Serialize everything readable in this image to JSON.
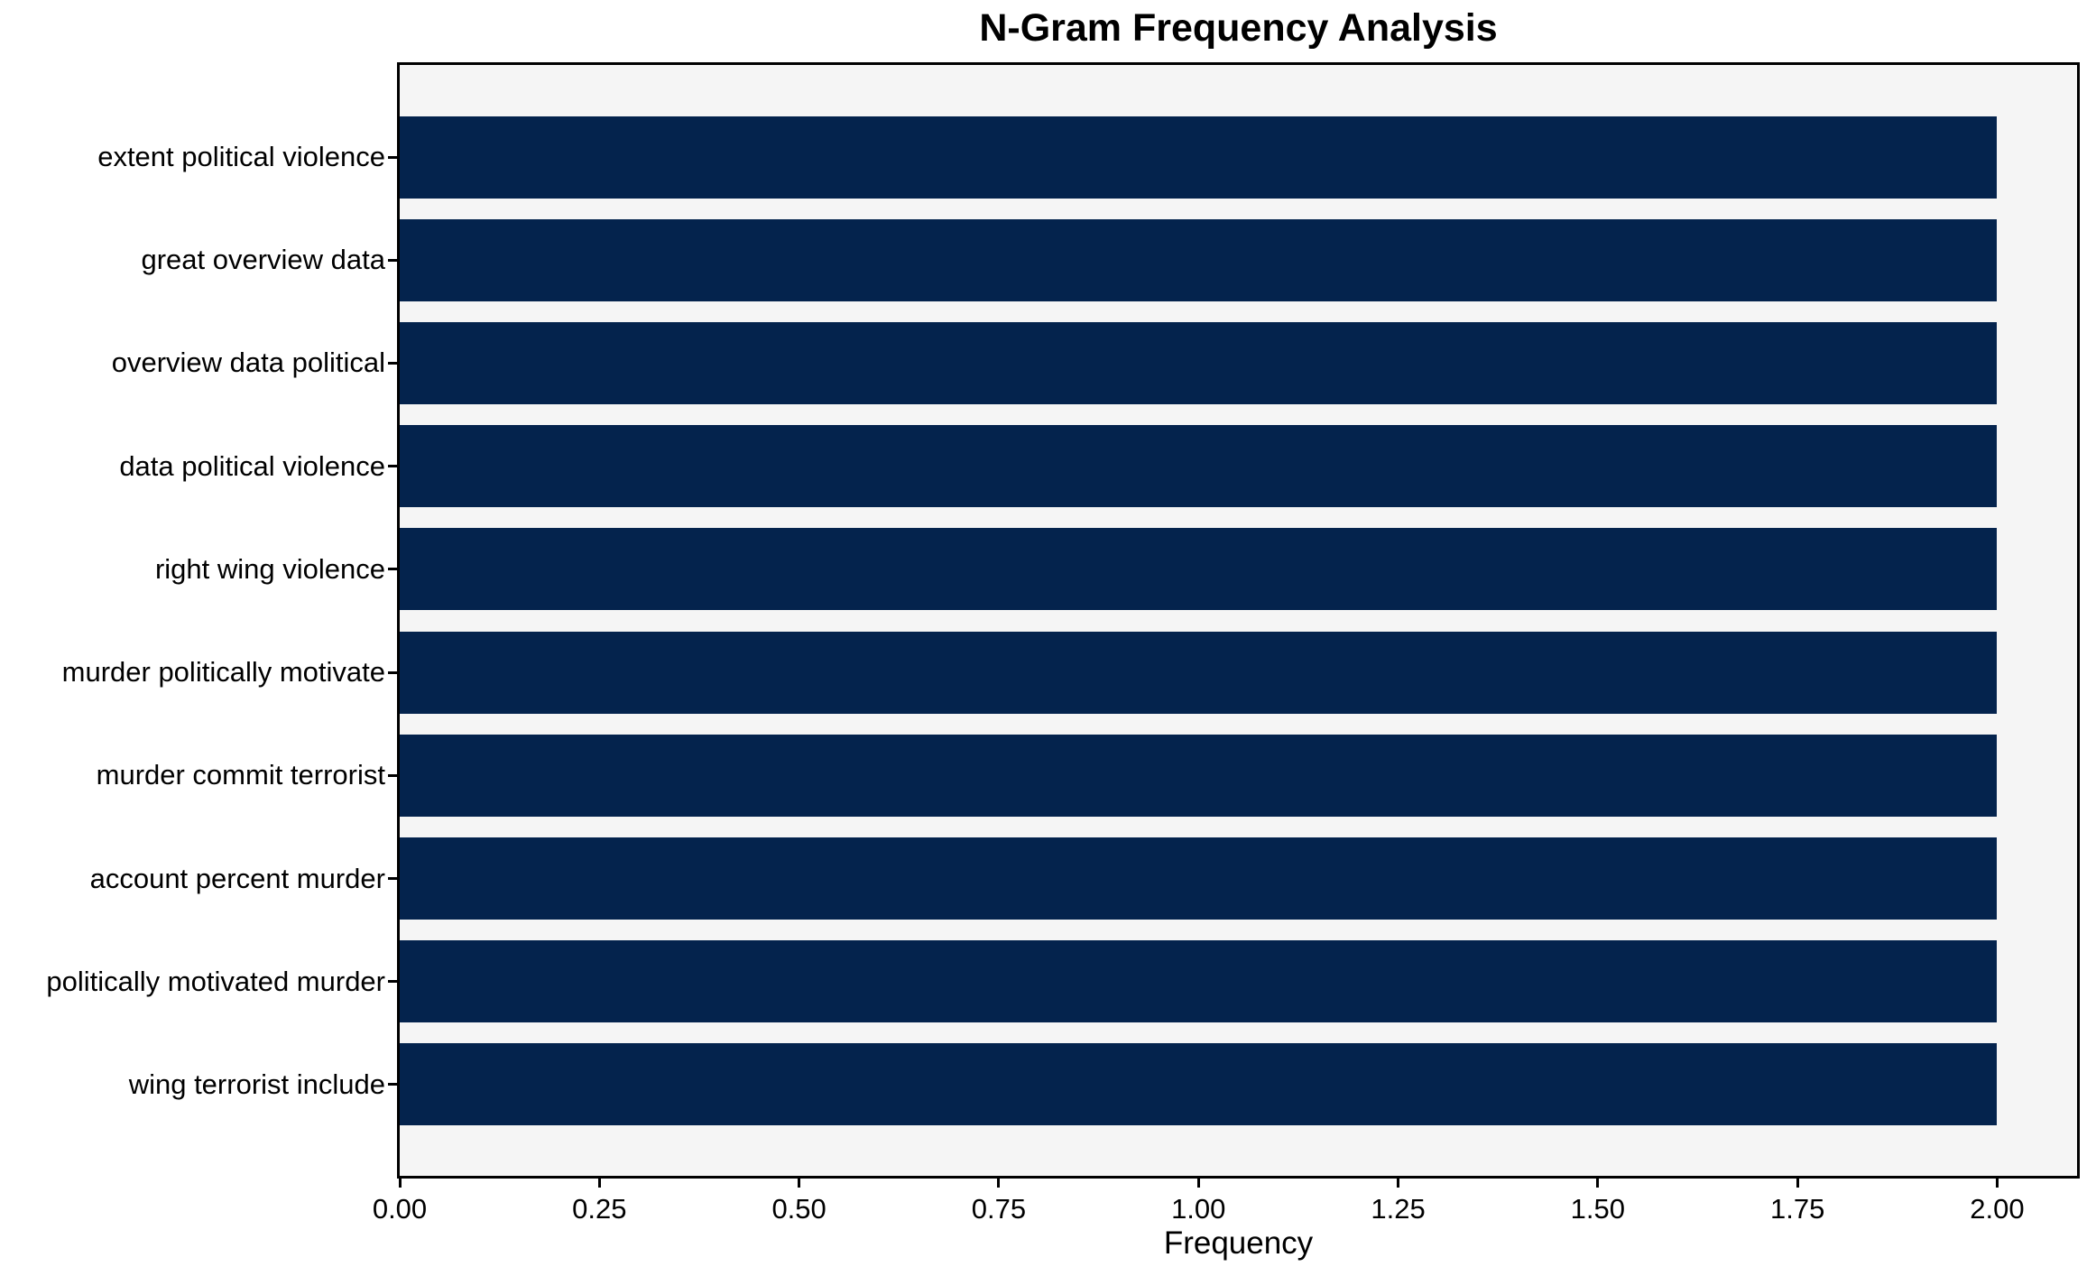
{
  "chart_data": {
    "type": "bar",
    "orientation": "horizontal",
    "title": "N-Gram Frequency Analysis",
    "xlabel": "Frequency",
    "ylabel": "",
    "categories": [
      "extent political violence",
      "great overview data",
      "overview data political",
      "data political violence",
      "right wing violence",
      "murder politically motivate",
      "murder commit terrorist",
      "account percent murder",
      "politically motivated murder",
      "wing terrorist include"
    ],
    "values": [
      2,
      2,
      2,
      2,
      2,
      2,
      2,
      2,
      2,
      2
    ],
    "xlim": [
      0,
      2.1
    ],
    "xticks": [
      "0.00",
      "0.25",
      "0.50",
      "0.75",
      "1.00",
      "1.25",
      "1.50",
      "1.75",
      "2.00"
    ],
    "xtick_values": [
      0,
      0.25,
      0.5,
      0.75,
      1.0,
      1.25,
      1.5,
      1.75,
      2.0
    ],
    "grid": false,
    "legend": null,
    "colors": {
      "bar": "#04234d",
      "plot_background": "#f5f5f5",
      "figure_background": "#ffffff",
      "spine": "#000000",
      "text": "#000000"
    }
  }
}
